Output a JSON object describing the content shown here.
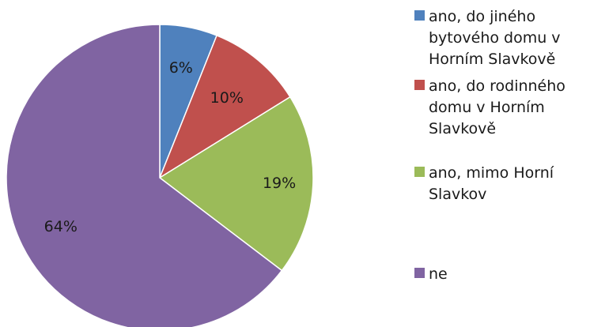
{
  "chart_data": {
    "type": "pie",
    "title": "",
    "slices": [
      {
        "label": "ano, do jiného bytového domu v Horním Slavkově",
        "value": 6,
        "display": "6%",
        "color": "#4F81BD"
      },
      {
        "label": "ano, do rodinného domu v Horním Slavkově",
        "value": 10,
        "display": "10%",
        "color": "#C0504D"
      },
      {
        "label": "ano, mimo Horní Slavkov",
        "value": 19,
        "display": "19%",
        "color": "#9BBB59"
      },
      {
        "label": "ne",
        "value": 64,
        "display": "64%",
        "color": "#8064A2"
      }
    ],
    "legend_position": "right"
  },
  "legend": {
    "items": [
      {
        "lines": [
          "ano, do jiného",
          "bytového domu v",
          "Horním Slavkově"
        ]
      },
      {
        "lines": [
          "ano, do rodinného",
          "domu v Horním",
          "Slavkově"
        ]
      },
      {
        "lines": [
          "ano, mimo Horní",
          "Slavkov"
        ]
      },
      {
        "lines": [
          "ne"
        ]
      }
    ]
  }
}
